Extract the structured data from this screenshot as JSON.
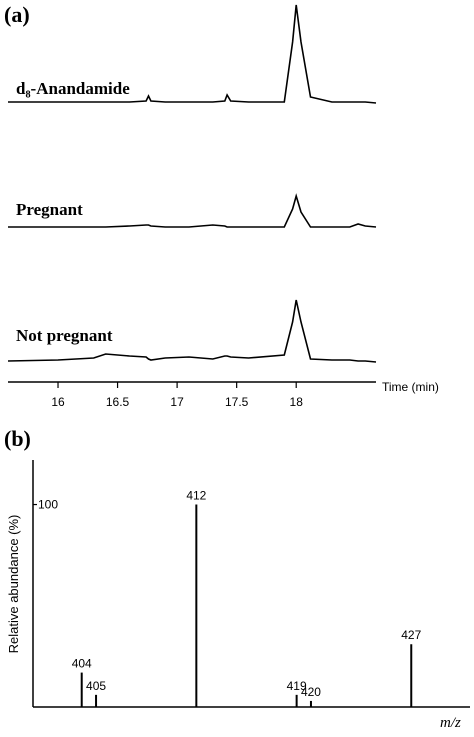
{
  "chart_data": [
    {
      "type": "line",
      "panel": "(a)",
      "x_label": "Time (min)",
      "x": [
        15.58,
        16.0,
        16.3,
        16.4,
        16.6,
        16.74,
        16.76,
        16.78,
        16.9,
        17.1,
        17.3,
        17.4,
        17.42,
        17.45,
        17.6,
        17.9,
        17.97,
        18.0,
        18.04,
        18.12,
        18.3,
        18.45,
        18.52,
        18.58,
        18.67
      ],
      "xlim": [
        15.58,
        18.67
      ],
      "xticks": [
        16,
        16.5,
        17,
        17.5,
        18
      ],
      "ylim": [
        0,
        100
      ],
      "series": [
        {
          "name": "d₈-Anandamide",
          "color": "#000000",
          "values": [
            0,
            0,
            0,
            0,
            0,
            1,
            6,
            1,
            0,
            0,
            0,
            1,
            7,
            1,
            0,
            0,
            60,
            97,
            60,
            5,
            0,
            0,
            0,
            0,
            -1
          ]
        },
        {
          "name": "Pregnant",
          "color": "#000000",
          "values": [
            0,
            0,
            0,
            0,
            1,
            2,
            2,
            1,
            0,
            0,
            2,
            1,
            0,
            0,
            0,
            0,
            18,
            31,
            15,
            0,
            0,
            0,
            3,
            1,
            0
          ]
        },
        {
          "name": "Not pregnant",
          "color": "#000000",
          "values": [
            1,
            2,
            4,
            8,
            6,
            5,
            3,
            2,
            4,
            5,
            3,
            6,
            6,
            5,
            4,
            7,
            40,
            62,
            40,
            3,
            2,
            2,
            1,
            1,
            0
          ]
        }
      ]
    },
    {
      "type": "stem",
      "panel": "(b)",
      "x_label": "m/z",
      "y_label": "Relative abundance (%)",
      "x": [
        404,
        405,
        412,
        419,
        420,
        427
      ],
      "values": [
        17,
        6,
        100,
        6,
        3,
        31
      ],
      "color": "#000000",
      "xlim": [
        400.6,
        431.1
      ],
      "ylim": [
        0,
        122
      ],
      "yticks": [
        100
      ]
    }
  ]
}
